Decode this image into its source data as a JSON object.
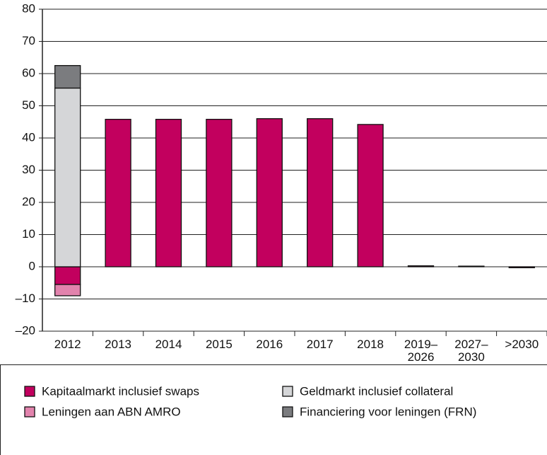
{
  "chart_data": {
    "type": "bar",
    "stacked": true,
    "categories": [
      "2012",
      "2013",
      "2014",
      "2015",
      "2016",
      "2017",
      "2018",
      "2019–\n2026",
      "2027–\n2030",
      ">2030"
    ],
    "series": [
      {
        "name": "Kapitaalmarkt inclusief swaps",
        "color": "#c2005e",
        "values": [
          -5.5,
          45.8,
          45.8,
          45.8,
          46,
          46,
          44.2,
          0.3,
          0.2,
          -0.3
        ]
      },
      {
        "name": "Leningen aan ABN AMRO",
        "color": "#e283ad",
        "values": [
          -3.5,
          0,
          0,
          0,
          0,
          0,
          0,
          0,
          0,
          0
        ]
      },
      {
        "name": "Geldmarkt inclusief collateral",
        "color": "#d5d6d8",
        "values": [
          55.5,
          0,
          0,
          0,
          0,
          0,
          0,
          0,
          0,
          0
        ]
      },
      {
        "name": "Financiering voor leningen (FRN)",
        "color": "#7b7c7f",
        "values": [
          7,
          0,
          0,
          0,
          0,
          0,
          0,
          0,
          0,
          0
        ]
      }
    ],
    "ylim": [
      -20,
      80
    ],
    "yticks": [
      {
        "value": -20,
        "label": "–20"
      },
      {
        "value": -10,
        "label": "–10"
      },
      0,
      10,
      20,
      30,
      40,
      50,
      60,
      70,
      80
    ],
    "grid": true
  }
}
